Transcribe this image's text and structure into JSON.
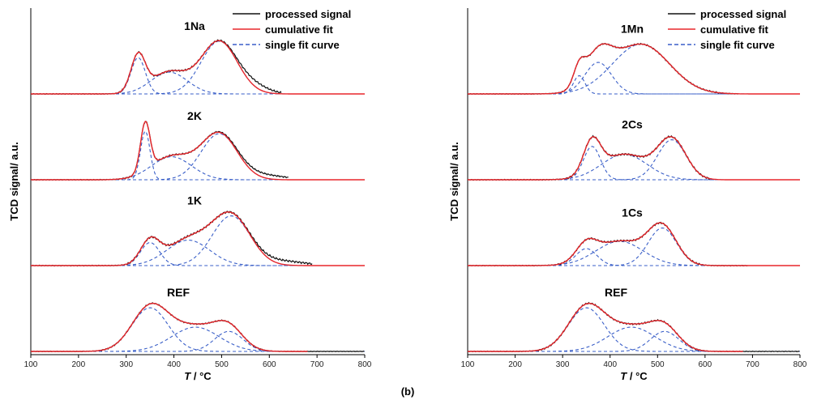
{
  "figure": {
    "caption": "(b)",
    "colors": {
      "processed": "#111111",
      "cumulative": "#e8262b",
      "single": "#3a5fc8",
      "axis": "#000000"
    }
  },
  "chart_data": [
    {
      "type": "line",
      "panel": "left",
      "xlabel": "T / °C",
      "xlabel_italic_part": "T",
      "xlabel_rest": " / °C",
      "ylabel": "TCD signal/ a.u.",
      "xlim": [
        100,
        800
      ],
      "x_ticks": [
        100,
        200,
        300,
        400,
        500,
        600,
        700,
        800
      ],
      "grid": false,
      "legend": {
        "placement": "top-right",
        "entries": [
          "processed signal",
          "cumulative fit",
          "single fit curve"
        ]
      },
      "traces": [
        {
          "label": "1Na",
          "cumulative_end": 800,
          "processed_end": 625,
          "peaks": [
            {
              "center": 325,
              "height": 0.6,
              "width": 15
            },
            {
              "center": 390,
              "height": 0.36,
              "width": 38
            },
            {
              "center": 495,
              "height": 0.87,
              "width": 38
            }
          ],
          "tail": {
            "center": 570,
            "height": 0.1,
            "width": 30
          }
        },
        {
          "label": "2K",
          "cumulative_end": 800,
          "processed_end": 640,
          "peaks": [
            {
              "center": 340,
              "height": 0.8,
              "width": 10
            },
            {
              "center": 395,
              "height": 0.38,
              "width": 42
            },
            {
              "center": 495,
              "height": 0.76,
              "width": 38
            }
          ],
          "tail": {
            "center": 590,
            "height": 0.07,
            "width": 45
          }
        },
        {
          "label": "1K",
          "cumulative_end": 800,
          "processed_end": 690,
          "peaks": [
            {
              "center": 350,
              "height": 0.38,
              "width": 20
            },
            {
              "center": 430,
              "height": 0.42,
              "width": 45
            },
            {
              "center": 520,
              "height": 0.82,
              "width": 40
            }
          ],
          "tail": {
            "center": 630,
            "height": 0.07,
            "width": 45
          }
        },
        {
          "label": "REF",
          "cumulative_end": 680,
          "processed_end": 800,
          "peaks": [
            {
              "center": 350,
              "height": 0.72,
              "width": 38
            },
            {
              "center": 445,
              "height": 0.4,
              "width": 50
            },
            {
              "center": 515,
              "height": 0.33,
              "width": 30
            }
          ]
        }
      ]
    },
    {
      "type": "line",
      "panel": "right",
      "xlabel": "T / °C",
      "xlabel_italic_part": "T",
      "xlabel_rest": " / °C",
      "ylabel": "TCD signal/ a.u.",
      "xlim": [
        100,
        800
      ],
      "x_ticks": [
        100,
        200,
        300,
        400,
        500,
        600,
        700,
        800
      ],
      "grid": false,
      "legend": {
        "placement": "top-right",
        "entries": [
          "processed signal",
          "cumulative fit",
          "single fit curve"
        ]
      },
      "traces": [
        {
          "label": "1Mn",
          "cumulative_end": 800,
          "processed_end": 670,
          "peaks": [
            {
              "center": 335,
              "height": 0.3,
              "width": 12
            },
            {
              "center": 375,
              "height": 0.52,
              "width": 28
            },
            {
              "center": 465,
              "height": 0.82,
              "width": 60
            }
          ]
        },
        {
          "label": "2Cs",
          "cumulative_end": 800,
          "processed_end": 610,
          "peaks": [
            {
              "center": 362,
              "height": 0.55,
              "width": 18
            },
            {
              "center": 430,
              "height": 0.42,
              "width": 48
            },
            {
              "center": 530,
              "height": 0.66,
              "width": 30
            }
          ]
        },
        {
          "label": "1Cs",
          "cumulative_end": 800,
          "processed_end": 690,
          "peaks": [
            {
              "center": 350,
              "height": 0.28,
              "width": 22
            },
            {
              "center": 420,
              "height": 0.4,
              "width": 50
            },
            {
              "center": 510,
              "height": 0.62,
              "width": 30
            }
          ]
        },
        {
          "label": "REF",
          "cumulative_end": 680,
          "processed_end": 800,
          "peaks": [
            {
              "center": 350,
              "height": 0.72,
              "width": 38
            },
            {
              "center": 445,
              "height": 0.4,
              "width": 50
            },
            {
              "center": 515,
              "height": 0.33,
              "width": 30
            }
          ]
        }
      ]
    }
  ]
}
